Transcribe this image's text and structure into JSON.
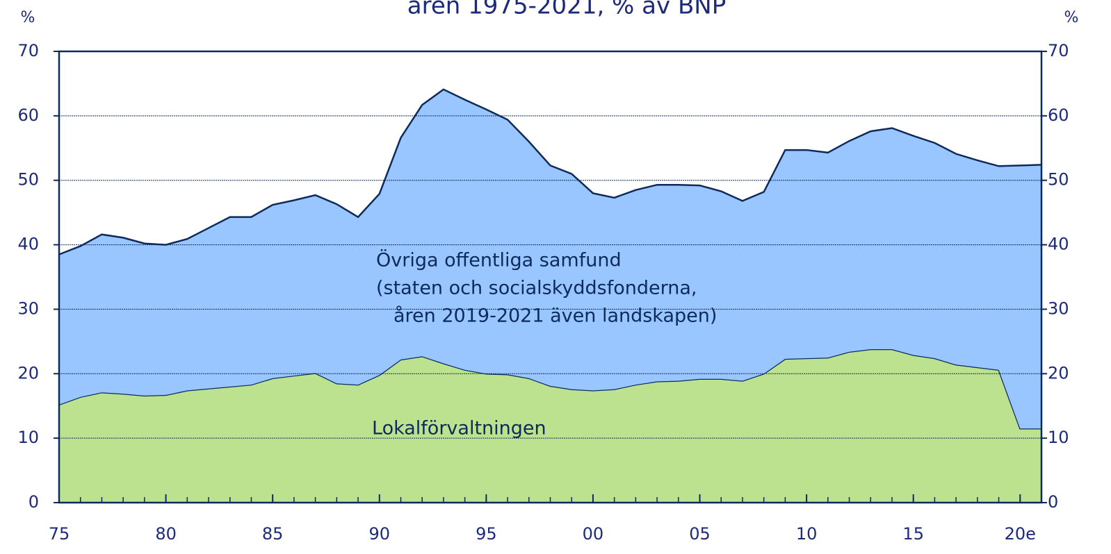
{
  "chart_data": {
    "type": "stacked_area",
    "title": "åren 1975-2021, % av BNP",
    "y_label": "%",
    "y2_label": "%",
    "x": [
      1975,
      1976,
      1977,
      1978,
      1979,
      1980,
      1981,
      1982,
      1983,
      1984,
      1985,
      1986,
      1987,
      1988,
      1989,
      1990,
      1991,
      1992,
      1993,
      1994,
      1995,
      1996,
      1997,
      1998,
      1999,
      2000,
      2001,
      2002,
      2003,
      2004,
      2005,
      2006,
      2007,
      2008,
      2009,
      2010,
      2011,
      2012,
      2013,
      2014,
      2015,
      2016,
      2017,
      2018,
      2019,
      2020,
      2021
    ],
    "xlim": [
      1975,
      2021
    ],
    "xticks": [
      {
        "value": 1975,
        "label": "75"
      },
      {
        "value": 1980,
        "label": "80"
      },
      {
        "value": 1985,
        "label": "85"
      },
      {
        "value": 1990,
        "label": "90"
      },
      {
        "value": 1995,
        "label": "95"
      },
      {
        "value": 2000,
        "label": "00"
      },
      {
        "value": 2005,
        "label": "05"
      },
      {
        "value": 2010,
        "label": "10"
      },
      {
        "value": 2015,
        "label": "15"
      },
      {
        "value": 2020,
        "label": "20e"
      }
    ],
    "ylim": [
      0,
      70
    ],
    "yticks": [
      0,
      10,
      20,
      30,
      40,
      50,
      60,
      70
    ],
    "y2lim": [
      0,
      70
    ],
    "y2ticks": [
      0,
      10,
      20,
      30,
      40,
      50,
      60,
      70
    ],
    "grid": true,
    "series": [
      {
        "name": "Lokalförvaltningen",
        "color": "#bde28f",
        "values": [
          15.2,
          16.4,
          17.1,
          16.9,
          16.6,
          16.7,
          17.4,
          17.7,
          18.0,
          18.3,
          19.3,
          19.7,
          20.1,
          18.5,
          18.3,
          19.8,
          22.2,
          22.7,
          21.6,
          20.6,
          20.0,
          19.9,
          19.3,
          18.1,
          17.6,
          17.4,
          17.6,
          18.3,
          18.8,
          18.9,
          19.2,
          19.2,
          18.9,
          20.0,
          22.3,
          22.4,
          22.5,
          23.4,
          23.8,
          23.8,
          22.9,
          22.4,
          21.4,
          21.0,
          20.6,
          11.5,
          11.5
        ]
      },
      {
        "name": "Övriga offentliga samfund",
        "note_lines": [
          "(staten och socialskyddsfonderna,",
          "åren 2019-2021 även landskapen)"
        ],
        "color": "#99c6ff",
        "values": [
          23.3,
          23.4,
          24.5,
          24.2,
          23.6,
          23.3,
          23.5,
          24.9,
          26.3,
          26.0,
          26.9,
          27.2,
          27.6,
          27.8,
          26.0,
          28.1,
          34.4,
          39.0,
          42.5,
          41.9,
          41.0,
          39.5,
          36.7,
          34.2,
          33.4,
          30.6,
          29.7,
          30.2,
          30.5,
          30.4,
          30.0,
          29.1,
          27.9,
          28.2,
          32.4,
          32.3,
          31.8,
          32.7,
          33.8,
          34.3,
          34.0,
          33.4,
          32.7,
          32.1,
          31.6,
          40.8,
          40.9
        ]
      }
    ]
  }
}
